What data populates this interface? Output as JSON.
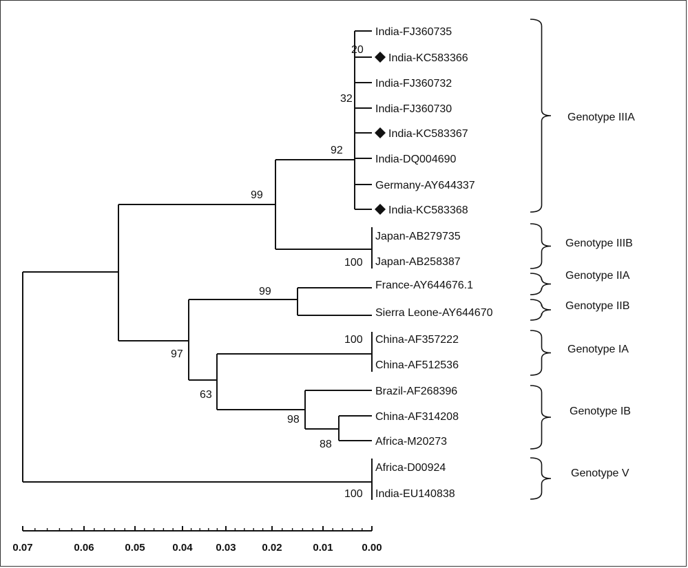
{
  "tree": {
    "leaves": [
      {
        "label": "India-FJ360735",
        "marker": false
      },
      {
        "label": "India-KC583366",
        "marker": true
      },
      {
        "label": "India-FJ360732",
        "marker": false
      },
      {
        "label": "India-FJ360730",
        "marker": false
      },
      {
        "label": "India-KC583367",
        "marker": true
      },
      {
        "label": "India-DQ004690",
        "marker": false
      },
      {
        "label": "Germany-AY644337",
        "marker": false
      },
      {
        "label": "India-KC583368",
        "marker": true
      },
      {
        "label": "Japan-AB279735",
        "marker": false
      },
      {
        "label": "Japan-AB258387",
        "marker": false
      },
      {
        "label": "France-AY644676.1",
        "marker": false
      },
      {
        "label": "Sierra Leone-AY644670",
        "marker": false
      },
      {
        "label": "China-AF357222",
        "marker": false
      },
      {
        "label": "China-AF512536",
        "marker": false
      },
      {
        "label": "Brazil-AF268396",
        "marker": false
      },
      {
        "label": "China-AF314208",
        "marker": false
      },
      {
        "label": "Africa-M20273",
        "marker": false
      },
      {
        "label": "Africa-D00924",
        "marker": false
      },
      {
        "label": "India-EU140838",
        "marker": false
      }
    ],
    "bootstrap": [
      "20",
      "32",
      "92",
      "99",
      "100",
      "99",
      "97",
      "100",
      "63",
      "98",
      "88",
      "100"
    ],
    "genotypes": [
      "Genotype IIIA",
      "Genotype IIIB",
      "Genotype IIA",
      "Genotype IIB",
      "Genotype IA",
      "Genotype IB",
      "Genotype V"
    ],
    "marker_icon": "diamond-icon"
  },
  "scale_axis": {
    "ticks": [
      "0.07",
      "0.06",
      "0.05",
      "0.04",
      "0.03",
      "0.02",
      "0.01",
      "0.00"
    ]
  }
}
